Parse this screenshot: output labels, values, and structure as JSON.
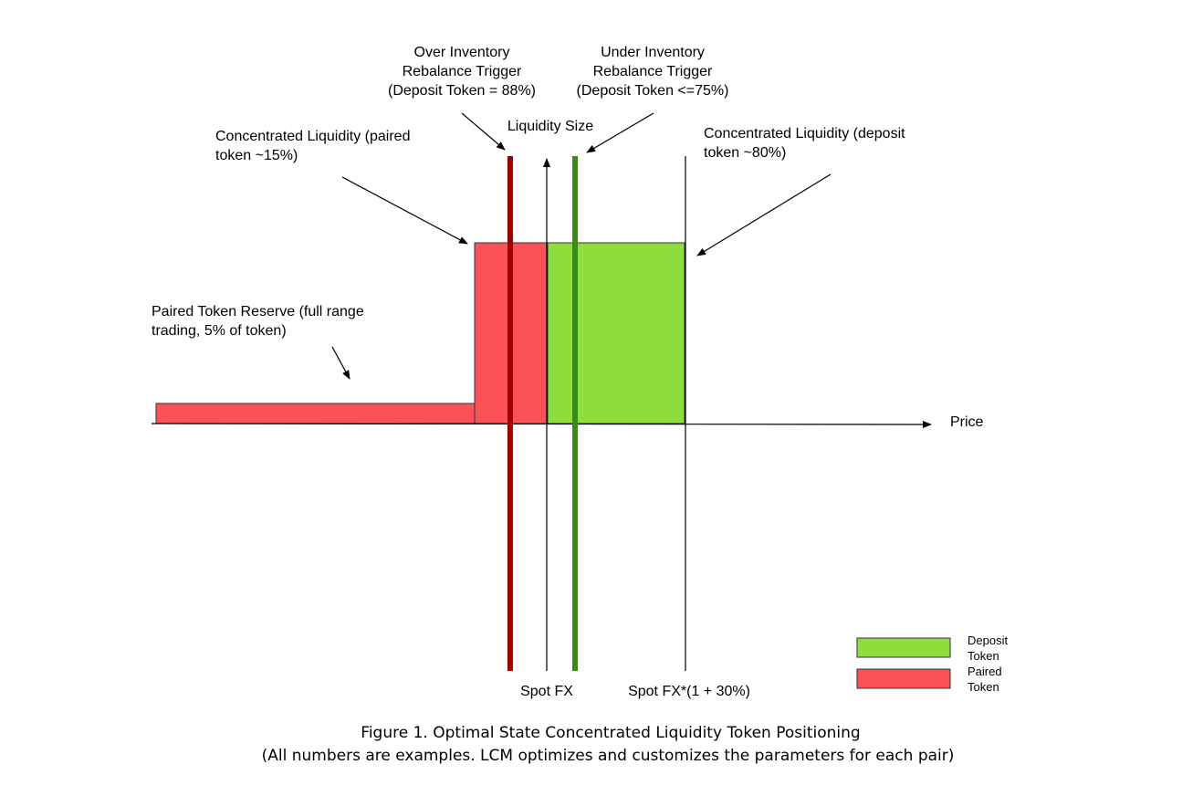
{
  "colors": {
    "deposit_token": "#8fdd3c",
    "paired_token": "#fd5158",
    "over_trigger_line": "#a00000",
    "under_trigger_line": "#3a8a18",
    "axis": "#000000"
  },
  "annotations": {
    "over_trigger": [
      "Over Inventory",
      "Rebalance Trigger",
      "(Deposit Token = 88%)"
    ],
    "under_trigger": [
      "Under Inventory",
      "Rebalance Trigger",
      "(Deposit Token <=75%)"
    ],
    "liquidity_size": "Liquidity Size",
    "cl_paired": [
      "Concentrated Liquidity (paired",
      "token ~15%)"
    ],
    "cl_deposit": [
      "Concentrated Liquidity (deposit",
      "token ~80%)"
    ],
    "reserve": [
      "Paired Token Reserve (full range",
      "trading, 5% of token)"
    ],
    "price": "Price",
    "spot_fx": "Spot FX",
    "spot_fx_upper": "Spot FX*(1 + 30%)"
  },
  "legend": {
    "deposit": [
      "Deposit",
      "Token"
    ],
    "paired": [
      "Paired",
      "Token"
    ]
  },
  "caption": {
    "line1": "Figure 1. Optimal State Concentrated Liquidity Token Positioning",
    "line2": "(All numbers are examples. LCM optimizes and customizes the parameters for each pair)"
  }
}
